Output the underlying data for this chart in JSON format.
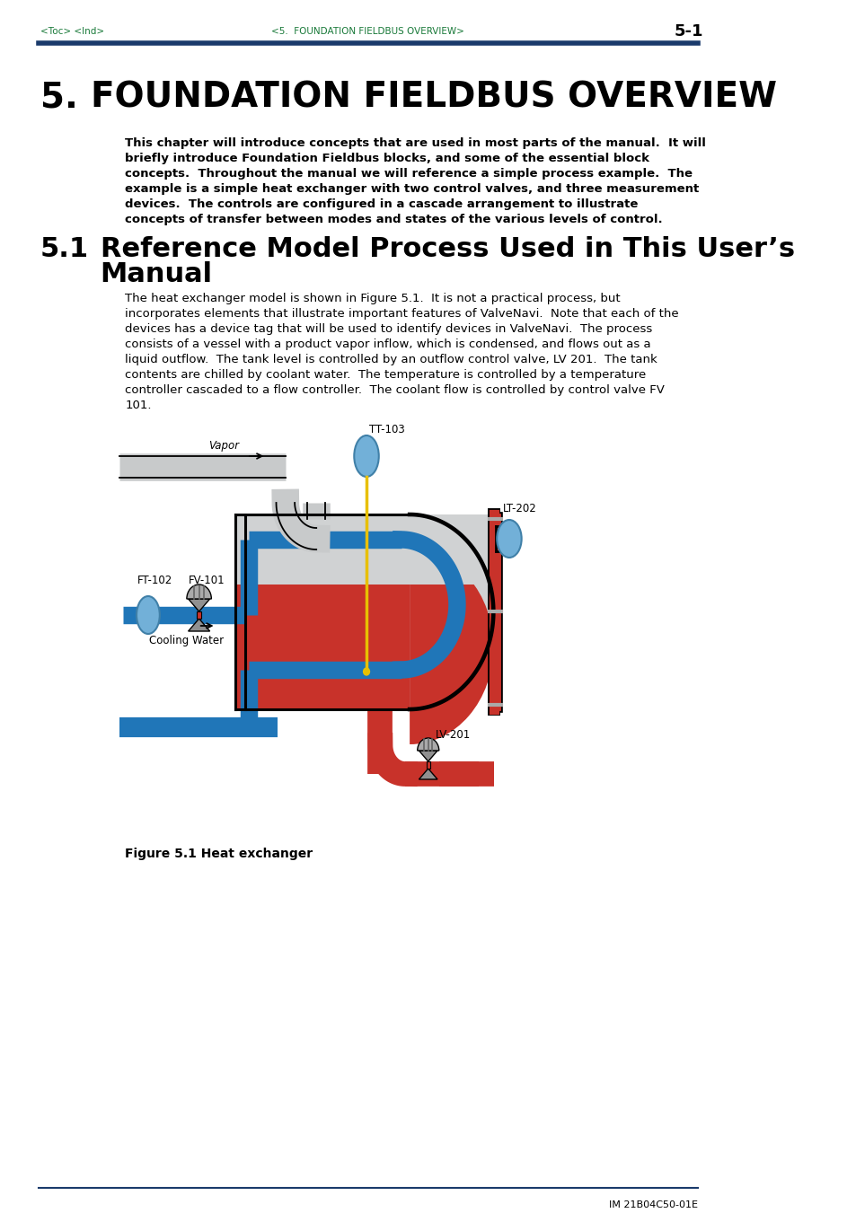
{
  "page_header_left": "<Toc> <Ind>",
  "page_header_center": "<5.  FOUNDATION FIELDBUS OVERVIEW>",
  "page_header_right": "5-1",
  "chapter_number": "5.",
  "chapter_title": "FOUNDATION FIELDBUS OVERVIEW",
  "section_number": "5.1",
  "section_title_line1": "Reference Model Process Used in This User’s",
  "section_title_line2": "Manual",
  "intro_text_lines": [
    "This chapter will introduce concepts that are used in most parts of the manual.  It will",
    "briefly introduce Foundation Fieldbus blocks, and some of the essential block",
    "concepts.  Throughout the manual we will reference a simple process example.  The",
    "example is a simple heat exchanger with two control valves, and three measurement",
    "devices.  The controls are configured in a cascade arrangement to illustrate",
    "concepts of transfer between modes and states of the various levels of control."
  ],
  "body_text_lines": [
    "The heat exchanger model is shown in Figure 5.1.  It is not a practical process, but",
    "incorporates elements that illustrate important features of ValveNavi.  Note that each of the",
    "devices has a device tag that will be used to identify devices in ValveNavi.  The process",
    "consists of a vessel with a product vapor inflow, which is condensed, and flows out as a",
    "liquid outflow.  The tank level is controlled by an outflow control valve, LV 201.  The tank",
    "contents are chilled by coolant water.  The temperature is controlled by a temperature",
    "controller cascaded to a flow controller.  The coolant flow is controlled by control valve FV",
    "101."
  ],
  "figure_caption": "Figure 5.1 Heat exchanger",
  "footer_text": "IM 21B04C50-01E",
  "col_header": "#1a3a6b",
  "col_green": "#1a7a3a",
  "col_blue": "#2076b8",
  "col_red": "#c8322a",
  "col_lightblue": "#72b0d8",
  "col_lightgray": "#d0d2d3",
  "col_dkgray": "#909090",
  "col_yellow": "#e8c000",
  "col_black": "#000000",
  "col_white": "#ffffff",
  "col_outline": "#333333"
}
